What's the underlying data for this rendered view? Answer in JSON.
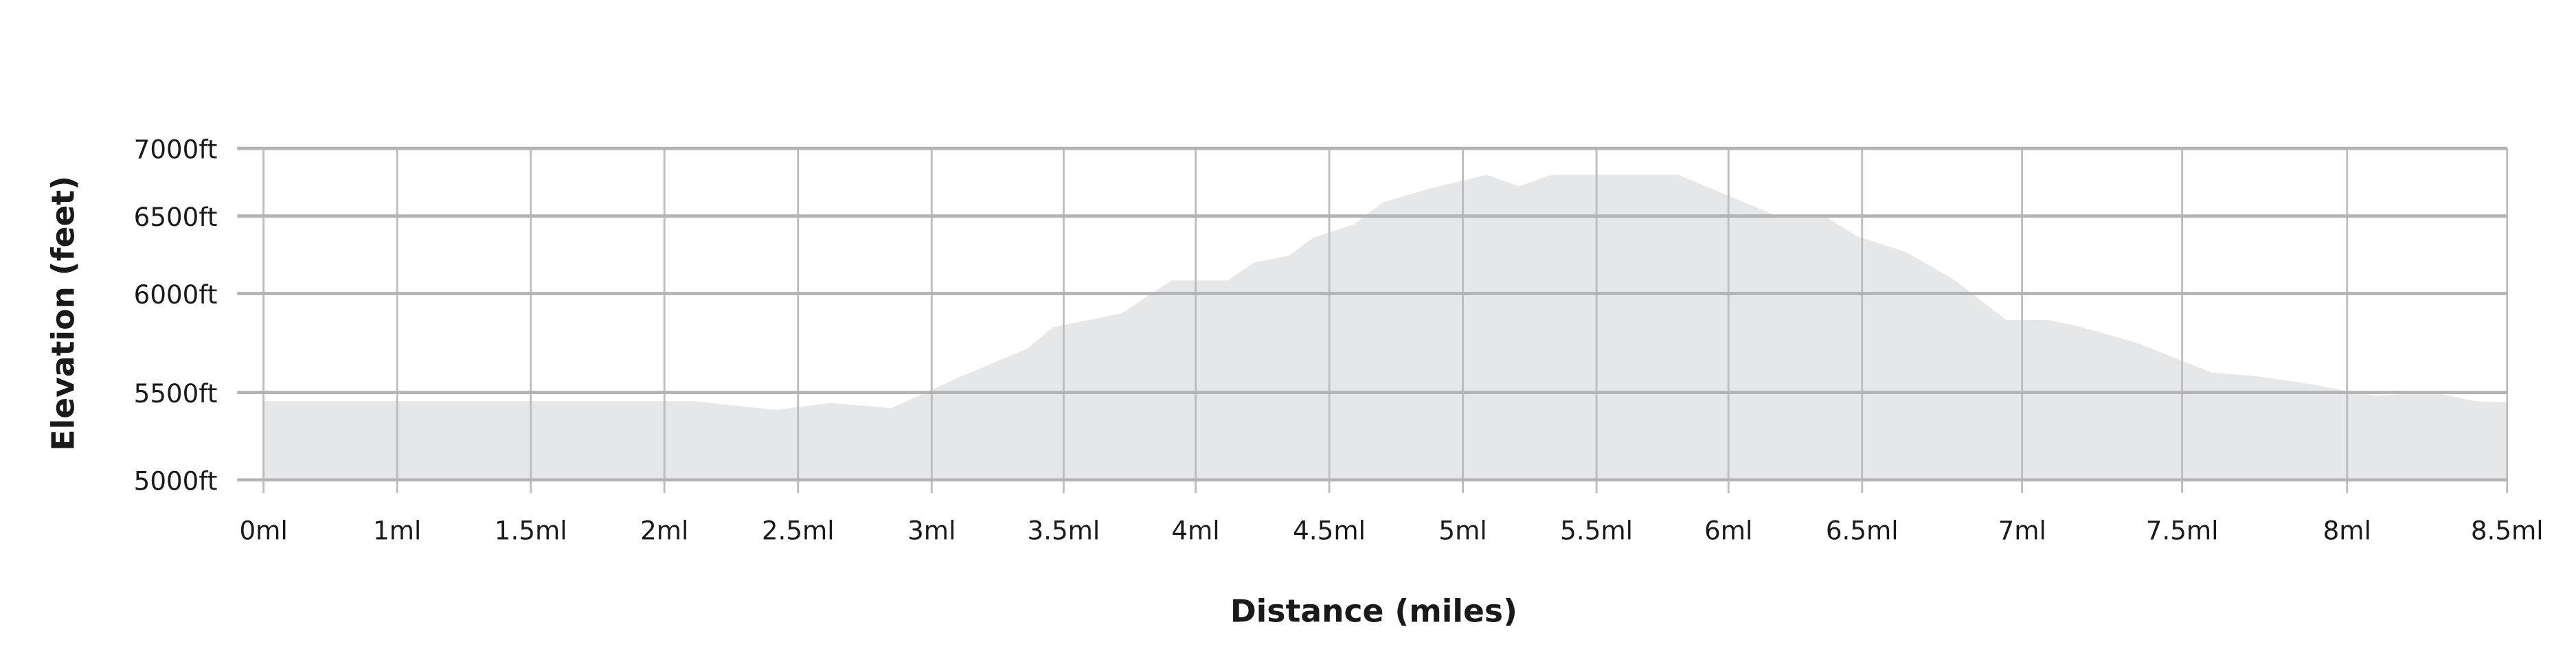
{
  "chart_data": {
    "type": "area",
    "title": "",
    "xlabel": "Distance (miles)",
    "ylabel": "Elevation (feet)",
    "x_tick_labels": [
      "0ml",
      "1ml",
      "1.5ml",
      "2ml",
      "2.5ml",
      "3ml",
      "3.5ml",
      "4ml",
      "4.5ml",
      "5ml",
      "5.5ml",
      "6ml",
      "6.5ml",
      "7ml",
      "7.5ml",
      "8ml",
      "8.5ml"
    ],
    "x_tick_values": [
      0,
      1,
      1.5,
      2,
      2.5,
      3,
      3.5,
      4,
      4.5,
      5,
      5.5,
      6,
      6.5,
      7,
      7.5,
      8,
      8.5
    ],
    "y_tick_labels": [
      "5000ft",
      "5500ft",
      "6000ft",
      "6500ft",
      "7000ft"
    ],
    "y_tick_values": [
      5000,
      5500,
      6000,
      6500,
      7000
    ],
    "xlim": [
      0,
      8.5
    ],
    "ylim": [
      5000,
      7000
    ],
    "grid": true,
    "colors": {
      "fill": "#e6e7e9",
      "grid_h": "#b4b4b7",
      "grid_v": "#bdbdbf"
    },
    "series": [
      {
        "x": [
          0,
          2.11,
          2.42,
          2.62,
          2.85,
          3.1,
          3.36,
          3.46,
          3.72,
          3.91,
          4.12,
          4.22,
          4.35,
          4.44,
          4.59,
          4.7,
          4.87,
          5.09,
          5.21,
          5.33,
          5.81,
          6.17,
          6.36,
          6.48,
          6.64,
          6.79,
          6.95,
          7.08,
          7.18,
          7.36,
          7.59,
          7.72,
          7.89,
          8.02,
          8.09,
          8.27,
          8.4,
          8.5
        ],
        "y": [
          5450,
          5450,
          5400,
          5440,
          5410,
          5575,
          5720,
          5830,
          5900,
          6085,
          6085,
          6200,
          6245,
          6360,
          6445,
          6600,
          6700,
          6805,
          6720,
          6805,
          6805,
          6510,
          6500,
          6370,
          6265,
          6085,
          5867,
          5867,
          5833,
          5750,
          5600,
          5583,
          5542,
          5500,
          5481,
          5500,
          5450,
          5443
        ]
      }
    ]
  }
}
